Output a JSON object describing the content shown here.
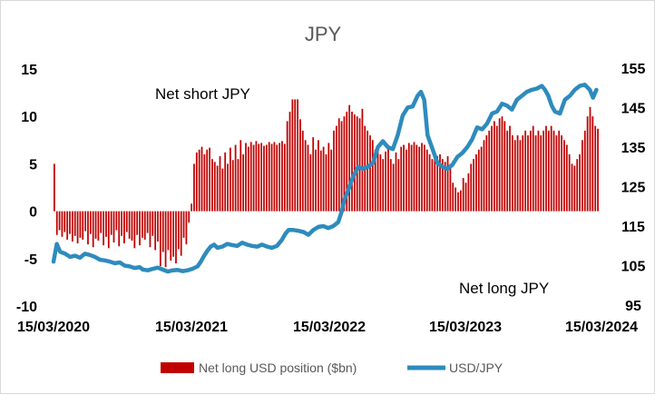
{
  "chart_data": {
    "type": "bar+line",
    "title": "JPY",
    "annotations": [
      "Net short JPY",
      "Net long JPY"
    ],
    "x_ticks": [
      "15/03/2020",
      "15/03/2021",
      "15/03/2022",
      "15/03/2023",
      "15/03/2024"
    ],
    "y_left": {
      "ticks": [
        15,
        10,
        5,
        0,
        -5,
        -10
      ],
      "ylim": [
        -10,
        15
      ]
    },
    "y_right": {
      "ticks": [
        155,
        145,
        135,
        125,
        115,
        105,
        95
      ],
      "ylim": [
        95,
        155
      ]
    },
    "colors": {
      "bars": "#c00000",
      "line": "#2e8bbd"
    },
    "series": [
      {
        "name": "Net long USD position ($bn)",
        "type": "bar",
        "axis": "left",
        "values": [
          5.0,
          -2.5,
          -2.0,
          -2.7,
          -2.2,
          -3.0,
          -2.4,
          -3.2,
          -2.6,
          -3.4,
          -2.8,
          -3.0,
          -2.1,
          -3.5,
          -2.4,
          -3.8,
          -2.9,
          -3.1,
          -2.3,
          -3.6,
          -2.7,
          -3.9,
          -2.5,
          -3.3,
          -2.0,
          -3.7,
          -2.6,
          -3.4,
          -2.2,
          -2.9,
          -3.1,
          -3.9,
          -2.5,
          -3.6,
          -2.8,
          -3.0,
          -2.3,
          -3.8,
          -2.6,
          -4.1,
          -3.2,
          -5.8,
          -4.3,
          -5.9,
          -4.1,
          -5.2,
          -4.8,
          -5.5,
          -4.0,
          -4.7,
          -2.8,
          -3.5,
          -1.2,
          0.8,
          5.0,
          6.2,
          6.5,
          6.8,
          6.0,
          6.5,
          6.7,
          5.5,
          5.2,
          4.8,
          5.8,
          4.5,
          6.2,
          5.0,
          6.7,
          5.4,
          7.0,
          5.5,
          7.5,
          6.0,
          7.2,
          6.8,
          7.3,
          7.0,
          7.4,
          7.1,
          7.2,
          6.9,
          7.0,
          7.3,
          7.1,
          7.3,
          7.0,
          7.2,
          7.4,
          7.1,
          9.5,
          10.5,
          11.8,
          11.8,
          11.8,
          9.7,
          8.5,
          7.5,
          7.0,
          6.0,
          7.8,
          6.5,
          7.5,
          6.4,
          6.8,
          6.0,
          7.2,
          6.5,
          8.5,
          9.0,
          9.8,
          9.5,
          10.0,
          10.5,
          11.2,
          10.5,
          10.2,
          10.0,
          9.8,
          10.8,
          9.0,
          8.5,
          8.0,
          7.5,
          6.5,
          6.8,
          6.0,
          5.5,
          6.3,
          7.0,
          5.5,
          5.0,
          6.2,
          5.5,
          6.8,
          7.0,
          6.5,
          7.2,
          7.0,
          7.3,
          7.0,
          6.8,
          7.2,
          7.0,
          6.5,
          6.0,
          5.5,
          6.2,
          5.8,
          6.0,
          5.5,
          5.2,
          5.8,
          5.0,
          3.0,
          2.5,
          2.0,
          2.2,
          3.5,
          3.0,
          4.0,
          5.0,
          5.5,
          6.0,
          6.5,
          6.8,
          7.5,
          8.0,
          8.5,
          9.0,
          9.5,
          9.0,
          9.8,
          10.0,
          9.5,
          8.5,
          9.0,
          8.0,
          7.5,
          8.0,
          7.5,
          8.0,
          8.5,
          8.0,
          8.5,
          9.0,
          8.0,
          8.5,
          8.0,
          8.5,
          9.0,
          8.5,
          9.0,
          8.5,
          8.0,
          8.5,
          8.0,
          7.5,
          7.0,
          6.0,
          5.0,
          4.8,
          5.5,
          6.0,
          7.5,
          8.5,
          10.0,
          11.0,
          10.0,
          9.0,
          8.7
        ]
      },
      {
        "name": "USD/JPY",
        "type": "line",
        "axis": "right",
        "points": [
          [
            0,
            106.0
          ],
          [
            2,
            110.5
          ],
          [
            4,
            108.5
          ],
          [
            7,
            108.0
          ],
          [
            10,
            107.2
          ],
          [
            13,
            107.5
          ],
          [
            16,
            107.0
          ],
          [
            19,
            108.0
          ],
          [
            22,
            107.7
          ],
          [
            25,
            107.2
          ],
          [
            28,
            106.5
          ],
          [
            31,
            106.3
          ],
          [
            34,
            106.0
          ],
          [
            37,
            105.6
          ],
          [
            40,
            105.8
          ],
          [
            43,
            105.0
          ],
          [
            46,
            104.8
          ],
          [
            49,
            104.4
          ],
          [
            52,
            104.6
          ],
          [
            54,
            104.0
          ],
          [
            57,
            103.8
          ],
          [
            60,
            104.2
          ],
          [
            63,
            104.5
          ],
          [
            66,
            104.0
          ],
          [
            69,
            103.5
          ],
          [
            72,
            103.8
          ],
          [
            75,
            103.9
          ],
          [
            78,
            103.6
          ],
          [
            81,
            103.8
          ],
          [
            84,
            104.2
          ],
          [
            87,
            104.8
          ],
          [
            89,
            106.0
          ],
          [
            91,
            107.5
          ],
          [
            93,
            108.8
          ],
          [
            95,
            109.8
          ],
          [
            97,
            110.3
          ],
          [
            99,
            109.5
          ],
          [
            102,
            109.8
          ],
          [
            105,
            110.5
          ],
          [
            108,
            110.2
          ],
          [
            111,
            110.0
          ],
          [
            114,
            110.8
          ],
          [
            117,
            110.3
          ],
          [
            120,
            110.0
          ],
          [
            123,
            109.8
          ],
          [
            126,
            110.3
          ],
          [
            129,
            109.8
          ],
          [
            132,
            109.5
          ],
          [
            135,
            110.0
          ],
          [
            138,
            111.5
          ],
          [
            140,
            113.0
          ],
          [
            142,
            114.0
          ],
          [
            145,
            114.0
          ],
          [
            148,
            113.8
          ],
          [
            151,
            113.5
          ],
          [
            154,
            112.8
          ],
          [
            157,
            114.0
          ],
          [
            160,
            114.8
          ],
          [
            163,
            115.0
          ],
          [
            166,
            114.5
          ],
          [
            169,
            115.0
          ],
          [
            172,
            116.0
          ],
          [
            174,
            118.5
          ],
          [
            176,
            122.0
          ],
          [
            178,
            124.0
          ],
          [
            181,
            127.5
          ],
          [
            184,
            130.0
          ],
          [
            187,
            129.5
          ],
          [
            190,
            130.0
          ],
          [
            193,
            131.0
          ],
          [
            196,
            135.0
          ],
          [
            199,
            136.5
          ],
          [
            202,
            135.0
          ],
          [
            205,
            134.5
          ],
          [
            208,
            138.0
          ],
          [
            211,
            143.0
          ],
          [
            214,
            145.0
          ],
          [
            217,
            145.3
          ],
          [
            220,
            148.0
          ],
          [
            222,
            149.0
          ],
          [
            224,
            147.0
          ],
          [
            226,
            138.0
          ],
          [
            229,
            134.5
          ],
          [
            232,
            131.0
          ],
          [
            235,
            130.0
          ],
          [
            238,
            129.5
          ],
          [
            241,
            130.5
          ],
          [
            244,
            132.5
          ],
          [
            247,
            133.5
          ],
          [
            250,
            135.0
          ],
          [
            253,
            137.0
          ],
          [
            256,
            140.0
          ],
          [
            259,
            139.5
          ],
          [
            262,
            141.0
          ],
          [
            265,
            143.5
          ],
          [
            268,
            144.0
          ],
          [
            271,
            146.0
          ],
          [
            274,
            145.5
          ],
          [
            277,
            144.5
          ],
          [
            280,
            147.0
          ],
          [
            283,
            148.0
          ],
          [
            286,
            149.0
          ],
          [
            289,
            149.5
          ],
          [
            292,
            149.8
          ],
          [
            295,
            150.5
          ],
          [
            297,
            149.5
          ],
          [
            299,
            148.0
          ],
          [
            301,
            145.5
          ],
          [
            303,
            144.0
          ],
          [
            306,
            143.5
          ],
          [
            309,
            147.0
          ],
          [
            312,
            148.0
          ],
          [
            315,
            149.5
          ],
          [
            318,
            150.5
          ],
          [
            321,
            150.8
          ],
          [
            324,
            149.5
          ],
          [
            326,
            147.5
          ],
          [
            328,
            149.5
          ]
        ]
      }
    ],
    "x_index": {
      "start": "15/03/2020",
      "end": "15/03/2024",
      "last_index": 330
    }
  }
}
